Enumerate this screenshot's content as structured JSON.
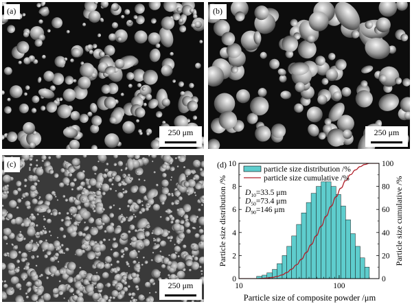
{
  "panels": {
    "a": {
      "label": "(a)",
      "scale": "250 μm"
    },
    "b": {
      "label": "(b)",
      "scale": "250 μm"
    },
    "c": {
      "label": "(c)",
      "scale": "250 μm"
    }
  },
  "chart_data": {
    "type": "bar",
    "panel_label": "(d)",
    "xlabel": "Particle size of composite powder /μm",
    "ylabel": "Particle size distribution /%",
    "ylabel_right": "Particle size cumulative /%",
    "x_log": true,
    "xlim": [
      10,
      250
    ],
    "ylim": [
      0,
      10
    ],
    "ylim_right": [
      0,
      100
    ],
    "x_ticks": [
      10,
      100
    ],
    "y_ticks": [
      0,
      2,
      4,
      6,
      8,
      10
    ],
    "y_ticks_right": [
      0,
      20,
      40,
      60,
      80,
      100
    ],
    "legend": [
      "particle size distribution /%",
      "particle size cumulative /%"
    ],
    "annotations": [
      "D10=33.5 μm",
      "D50=73.4 μm",
      "D90=146 μm"
    ],
    "annotation_parts": [
      {
        "sym": "D",
        "sub": "10",
        "val": "=33.5 μm"
      },
      {
        "sym": "D",
        "sub": "50",
        "val": "=73.4 μm"
      },
      {
        "sym": "D",
        "sub": "90",
        "val": "=146 μm"
      }
    ],
    "bar_color": "#5ecdcd",
    "curve_color": "#b0202a",
    "bins": [
      {
        "lo": 15,
        "hi": 17,
        "v": 0.2
      },
      {
        "lo": 17,
        "hi": 19,
        "v": 0.3
      },
      {
        "lo": 19,
        "hi": 21.5,
        "v": 0.5
      },
      {
        "lo": 21.5,
        "hi": 24,
        "v": 0.8
      },
      {
        "lo": 24,
        "hi": 27,
        "v": 1.3
      },
      {
        "lo": 27,
        "hi": 30,
        "v": 2.0
      },
      {
        "lo": 30,
        "hi": 33.5,
        "v": 2.8
      },
      {
        "lo": 33.5,
        "hi": 37.5,
        "v": 3.7
      },
      {
        "lo": 37.5,
        "hi": 42,
        "v": 4.7
      },
      {
        "lo": 42,
        "hi": 47,
        "v": 5.7
      },
      {
        "lo": 47,
        "hi": 52.5,
        "v": 6.6
      },
      {
        "lo": 52.5,
        "hi": 59,
        "v": 7.4
      },
      {
        "lo": 59,
        "hi": 66,
        "v": 8.0
      },
      {
        "lo": 66,
        "hi": 74,
        "v": 8.4
      },
      {
        "lo": 74,
        "hi": 83,
        "v": 8.4
      },
      {
        "lo": 83,
        "hi": 93,
        "v": 8.0
      },
      {
        "lo": 93,
        "hi": 104,
        "v": 7.3
      },
      {
        "lo": 104,
        "hi": 116,
        "v": 6.3
      },
      {
        "lo": 116,
        "hi": 130,
        "v": 5.1
      },
      {
        "lo": 130,
        "hi": 145,
        "v": 3.9
      },
      {
        "lo": 145,
        "hi": 162,
        "v": 2.8
      },
      {
        "lo": 162,
        "hi": 180,
        "v": 1.8
      },
      {
        "lo": 180,
        "hi": 200,
        "v": 1.0
      }
    ]
  }
}
